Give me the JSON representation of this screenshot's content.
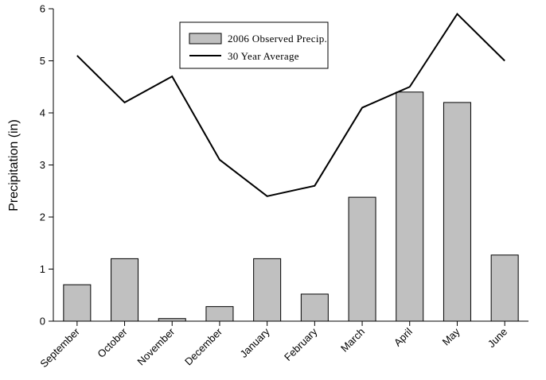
{
  "chart_data": {
    "type": "bar",
    "categories": [
      "September",
      "October",
      "November",
      "December",
      "January",
      "February",
      "March",
      "April",
      "May",
      "June"
    ],
    "series": [
      {
        "name": "2006 Observed Precip.",
        "type": "bar",
        "values": [
          0.7,
          1.2,
          0.05,
          0.28,
          1.2,
          0.52,
          2.38,
          4.4,
          4.2,
          1.27
        ],
        "color": "#c0c0c0"
      },
      {
        "name": "30 Year Average",
        "type": "line",
        "values": [
          5.1,
          4.2,
          4.7,
          3.1,
          2.4,
          2.6,
          4.1,
          4.5,
          5.9,
          5.0
        ],
        "color": "#000000"
      }
    ],
    "title": "",
    "xlabel": "",
    "ylabel": "Precipitation (in)",
    "ylim": [
      0,
      6
    ],
    "yticks": [
      "0",
      "1",
      "2",
      "3",
      "4",
      "5",
      "6"
    ],
    "grid": false,
    "legend_position": "top-center"
  }
}
